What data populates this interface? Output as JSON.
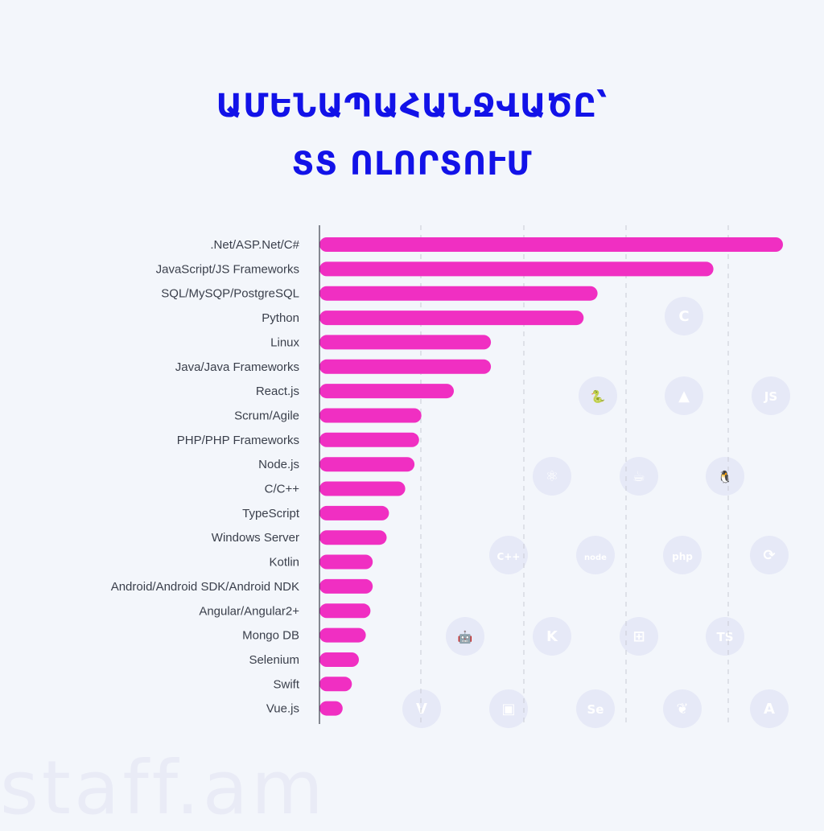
{
  "title": {
    "line1": "ԱՄԵՆԱՊԱՀԱՆՋՎԱԾԸ՝",
    "line2": "ՏՏ ՈԼՈՐՏՈՒՄ"
  },
  "watermark": "staff.am",
  "colors": {
    "bar": "#f02fc2",
    "title": "#1212e8",
    "background": "#f3f6fb",
    "gridline": "#c9ccd6",
    "icon_circle": "#e6e9f7",
    "icon_glyph": "#ffffff"
  },
  "chart_data": {
    "type": "bar",
    "orientation": "horizontal",
    "title": "ԱՄԵՆԱՊԱՀԱՆՋՎԱԾԸ՝ ՏՏ ՈԼՈՐՏՈՒՄ",
    "categories": [
      ".Net/ASP.Net/C#",
      "JavaScript/JS Frameworks",
      "SQL/MySQP/PostgreSQL",
      "Python",
      "Linux",
      "Java/Java Frameworks",
      "React.js",
      "Scrum/Agile",
      "PHP/PHP Frameworks",
      "Node.js",
      "C/C++",
      "TypeScript",
      "Windows Server",
      "Kotlin",
      "Android/Android SDK/Android NDK",
      "Angular/Angular2+",
      "Mongo DB",
      "Selenium",
      "Swift",
      "Vue.js"
    ],
    "values": [
      100,
      85,
      60,
      57,
      37,
      37,
      29,
      22,
      21.5,
      20.5,
      18.5,
      15,
      14.5,
      11.5,
      11.5,
      11,
      10,
      8.5,
      7,
      5
    ],
    "xlim": [
      0,
      100
    ],
    "grid": true,
    "gridlines_count": 5,
    "axis_ticks_shown": false
  },
  "decor_icons": [
    {
      "name": "c-logo-icon",
      "glyph": "C"
    },
    {
      "name": "python-logo-icon",
      "glyph": "🐍"
    },
    {
      "name": "swift-logo-icon",
      "glyph": "▲"
    },
    {
      "name": "js-logo-icon",
      "glyph": "JS"
    },
    {
      "name": "react-logo-icon",
      "glyph": "⚛"
    },
    {
      "name": "java-logo-icon",
      "glyph": "☕"
    },
    {
      "name": "linux-logo-icon",
      "glyph": "🐧"
    },
    {
      "name": "cpp-logo-icon",
      "glyph": "C++"
    },
    {
      "name": "node-logo-icon",
      "glyph": "node"
    },
    {
      "name": "php-logo-icon",
      "glyph": "php"
    },
    {
      "name": "scrum-logo-icon",
      "glyph": "⟳"
    },
    {
      "name": "android-logo-icon",
      "glyph": "🤖"
    },
    {
      "name": "kotlin-logo-icon",
      "glyph": "K"
    },
    {
      "name": "windows-logo-icon",
      "glyph": "⊞"
    },
    {
      "name": "typescript-logo-icon",
      "glyph": "TS"
    },
    {
      "name": "vue-logo-icon",
      "glyph": "V"
    },
    {
      "name": "android-studio-logo-icon",
      "glyph": "▣"
    },
    {
      "name": "selenium-logo-icon",
      "glyph": "Se"
    },
    {
      "name": "mongodb-logo-icon",
      "glyph": "❦"
    },
    {
      "name": "angular-logo-icon",
      "glyph": "A"
    }
  ]
}
